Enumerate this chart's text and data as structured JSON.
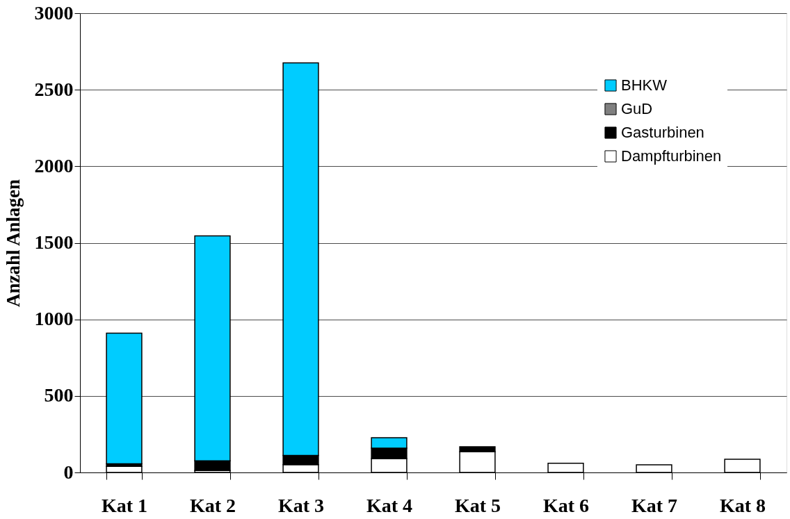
{
  "chart_data": {
    "type": "bar",
    "ylabel": "Anzahl Anlagen",
    "categories": [
      "Kat 1",
      "Kat 2",
      "Kat 3",
      "Kat 4",
      "Kat 5",
      "Kat 6",
      "Kat 7",
      "Kat 8"
    ],
    "stacked": true,
    "series": [
      {
        "name": "Dampfturbinen",
        "color": "#ffffff",
        "values": [
          40,
          12,
          51,
          91,
          136,
          60,
          50,
          86
        ]
      },
      {
        "name": "Gasturbinen",
        "color": "#000000",
        "values": [
          17,
          64,
          60,
          68,
          32,
          0,
          0,
          0
        ]
      },
      {
        "name": "GuD",
        "color": "#808080",
        "values": [
          0,
          0,
          0,
          0,
          0,
          0,
          0,
          0
        ]
      },
      {
        "name": "BHKW",
        "color": "#00ccff",
        "values": [
          853,
          1469,
          2564,
          68,
          0,
          0,
          0,
          0
        ]
      }
    ],
    "ylim": [
      0,
      3000
    ],
    "yticks": [
      0,
      500,
      1000,
      1500,
      2000,
      2500,
      3000
    ],
    "grid": "y",
    "legend": "top right"
  }
}
